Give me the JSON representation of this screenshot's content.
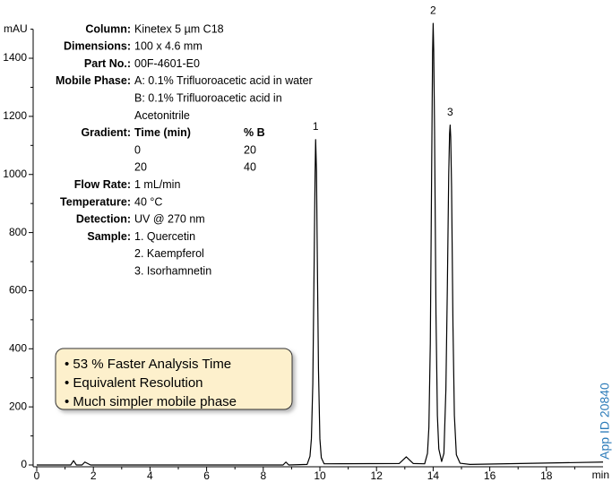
{
  "chart_data": {
    "type": "line",
    "ylabel": "mAU",
    "xlabel": "min",
    "xlim": [
      0,
      20
    ],
    "ylim": [
      0,
      1500
    ],
    "xticks": [
      0,
      2,
      4,
      6,
      8,
      10,
      12,
      14,
      16,
      18
    ],
    "xticks_minor": [
      1,
      3,
      5,
      7,
      9,
      11,
      13,
      15,
      17,
      19
    ],
    "yticks": [
      0,
      200,
      400,
      600,
      800,
      1000,
      1200,
      1400
    ],
    "yticks_minor": [
      100,
      300,
      500,
      700,
      900,
      1100,
      1300,
      1500
    ],
    "color": "#000000",
    "x": [
      0,
      1.2,
      1.3,
      1.4,
      1.6,
      1.7,
      1.9,
      8.7,
      8.8,
      8.9,
      9.55,
      9.65,
      9.7,
      9.75,
      9.8,
      9.83,
      9.85,
      9.88,
      9.9,
      9.95,
      10.0,
      10.05,
      10.15,
      12.8,
      13.05,
      13.3,
      13.7,
      13.8,
      13.85,
      13.9,
      13.95,
      13.98,
      14.0,
      14.02,
      14.05,
      14.1,
      14.15,
      14.2,
      14.3,
      14.38,
      14.45,
      14.5,
      14.55,
      14.58,
      14.6,
      14.62,
      14.65,
      14.7,
      14.75,
      14.82,
      14.95,
      15.3,
      20
    ],
    "values": [
      0,
      0,
      15,
      0,
      0,
      10,
      0,
      0,
      10,
      0,
      2,
      30,
      90,
      280,
      720,
      1000,
      1120,
      1010,
      800,
      330,
      90,
      25,
      4,
      5,
      28,
      5,
      4,
      40,
      130,
      420,
      1050,
      1420,
      1520,
      1430,
      1150,
      520,
      170,
      55,
      12,
      40,
      260,
      600,
      1000,
      1140,
      1170,
      1130,
      960,
      480,
      170,
      35,
      6,
      2,
      10
    ],
    "peaks": [
      {
        "label": "1",
        "time": 9.85,
        "height": 1120
      },
      {
        "label": "2",
        "time": 14.0,
        "height": 1520
      },
      {
        "label": "3",
        "time": 14.6,
        "height": 1170
      }
    ],
    "conditions": [
      {
        "label": "Column:",
        "lines": [
          "Kinetex 5 µm C18"
        ]
      },
      {
        "label": "Dimensions:",
        "lines": [
          "100 x 4.6 mm"
        ]
      },
      {
        "label": "Part No.:",
        "lines": [
          "00F-4601-E0"
        ]
      },
      {
        "label": "Mobile Phase:",
        "lines": [
          "A: 0.1% Trifluoroacetic acid in water",
          "B: 0.1% Trifluoroacetic acid in",
          "Acetonitrile"
        ]
      },
      {
        "label": "Gradient:",
        "table": [
          [
            "Time (min)",
            "% B"
          ],
          [
            "0",
            "20"
          ],
          [
            "20",
            "40"
          ]
        ]
      },
      {
        "label": "Flow Rate:",
        "lines": [
          "1 mL/min"
        ]
      },
      {
        "label": "Temperature:",
        "lines": [
          "40 °C"
        ]
      },
      {
        "label": "Detection:",
        "lines": [
          "UV @ 270 nm"
        ]
      },
      {
        "label": "Sample:",
        "lines": [
          "1. Quercetin",
          "2. Kaempferol",
          "3. Isorhamnetin"
        ]
      }
    ],
    "highlights": [
      "• 53 % Faster Analysis Time",
      "• Equivalent Resolution",
      "• Much simpler mobile phase"
    ],
    "app_id": "App ID 20840"
  }
}
